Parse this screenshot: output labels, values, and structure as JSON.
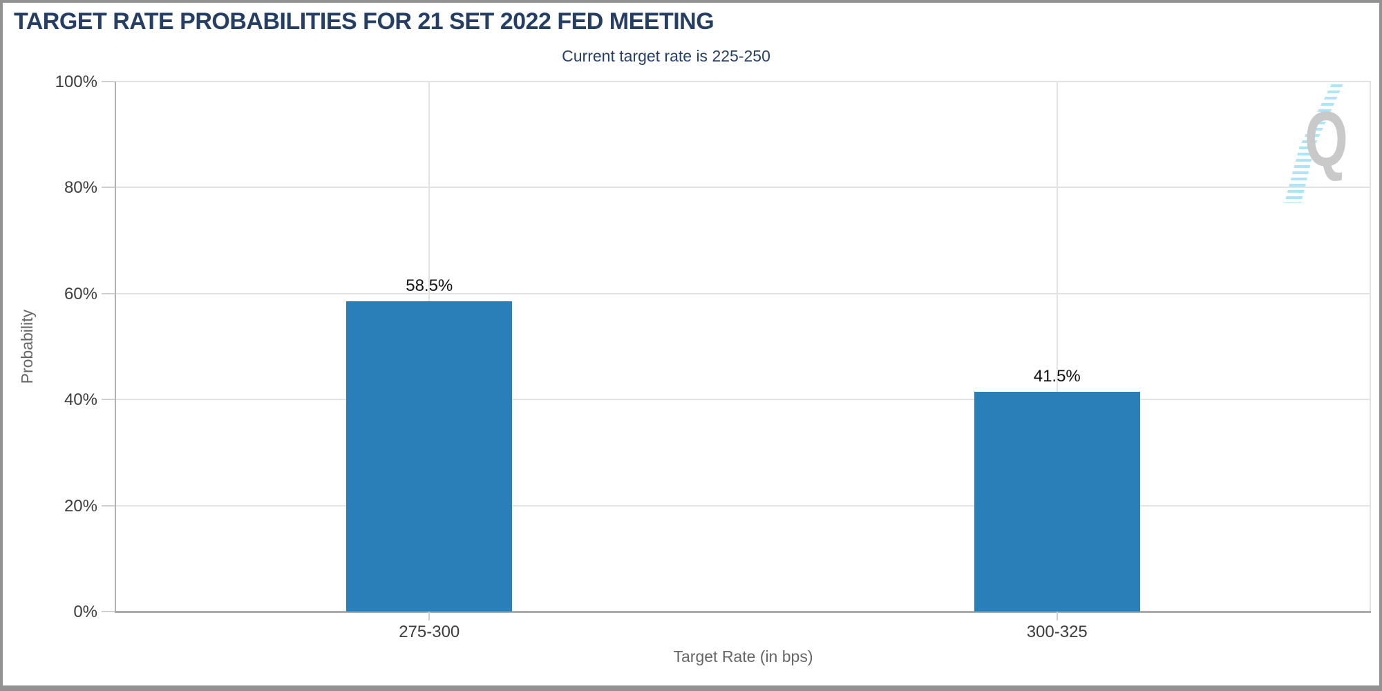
{
  "chart_data": {
    "type": "bar",
    "title": "TARGET RATE PROBABILITIES FOR 21 SET 2022 FED MEETING",
    "subtitle": "Current target rate is 225-250",
    "xlabel": "Target Rate (in bps)",
    "ylabel": "Probability",
    "categories": [
      "275-300",
      "300-325"
    ],
    "values": [
      58.5,
      41.5
    ],
    "value_labels": [
      "58.5%",
      "41.5%"
    ],
    "ylim": [
      0,
      100
    ],
    "ytick_labels": [
      "0%",
      "20%",
      "40%",
      "60%",
      "80%",
      "100%"
    ],
    "grid": true,
    "legend": false,
    "bar_color": "#2b7fb8",
    "watermark_letter": "Q"
  },
  "colors": {
    "title": "#253e66",
    "bar": "#2b7fb8",
    "gridline": "#e3e3e3",
    "axis_line": "#b3b3b3",
    "tick_label": "#3d3d3d",
    "axis_title": "#666666",
    "value_label": "#111111",
    "watermark_gray": "#c9c9c9",
    "watermark_blue": "#a5e1f7",
    "frame_border": "#929292"
  }
}
